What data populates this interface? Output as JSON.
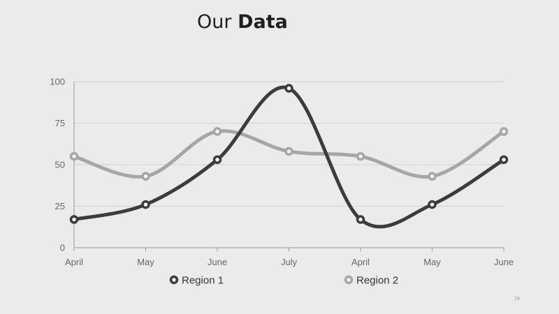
{
  "slide": {
    "title_regular": "Our",
    "title_bold": "Data",
    "page_number": "24"
  },
  "chart_data": {
    "type": "line",
    "smooth": true,
    "categories": [
      "April",
      "May",
      "June",
      "July",
      "April",
      "May",
      "June"
    ],
    "series": [
      {
        "name": "Region 1",
        "values": [
          17,
          26,
          53,
          96,
          17,
          26,
          53
        ],
        "color": "#3c3c3c"
      },
      {
        "name": "Region 2",
        "values": [
          55,
          43,
          70,
          58,
          55,
          43,
          70
        ],
        "color": "#a6a6a6"
      }
    ],
    "title": "",
    "xlabel": "",
    "ylabel": "",
    "ylim": [
      0,
      100
    ],
    "yticks": [
      "0",
      "25",
      "50",
      "75",
      "100"
    ],
    "grid": true,
    "legend": "bottom"
  }
}
